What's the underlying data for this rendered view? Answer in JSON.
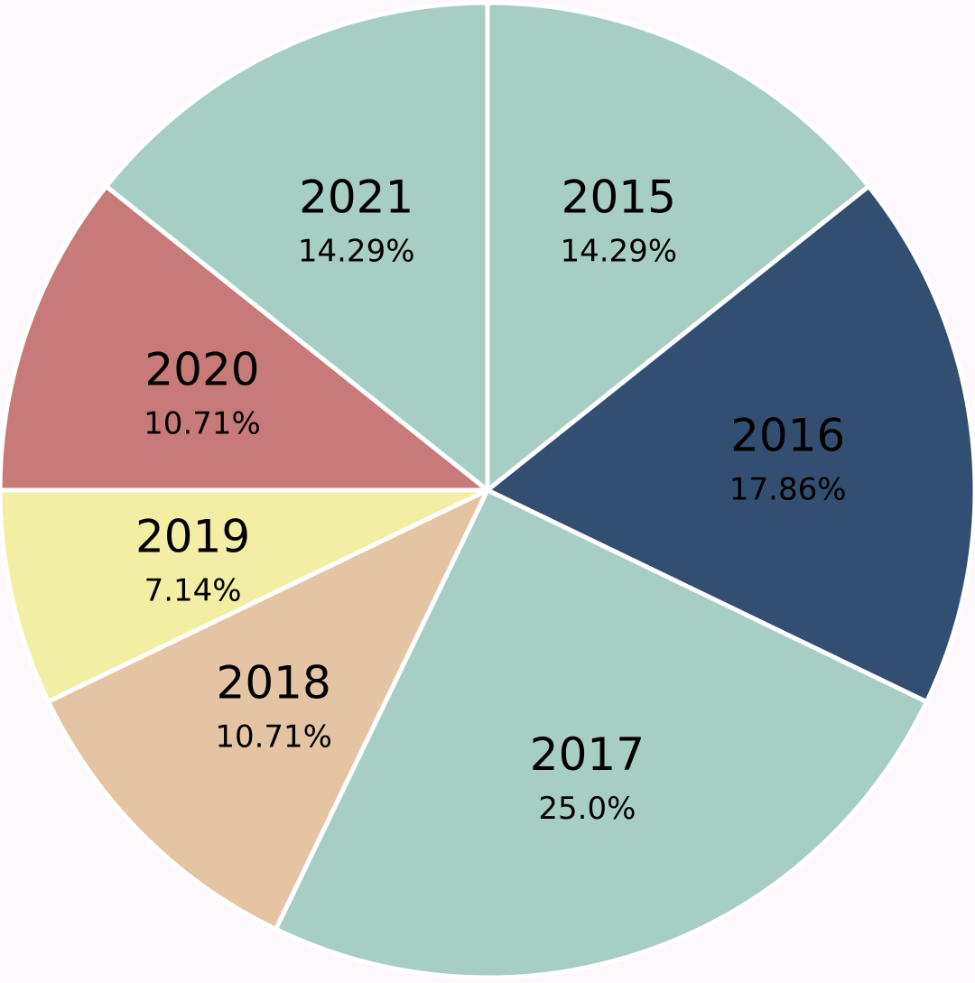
{
  "chart_data": {
    "type": "pie",
    "title": "",
    "start_angle": "top (12 o'clock)",
    "direction": "clockwise",
    "slices": [
      {
        "label": "2015",
        "value": 14.29,
        "percent_label": "14.29%",
        "color": "#a6cec4"
      },
      {
        "label": "2016",
        "value": 17.86,
        "percent_label": "17.86%",
        "color": "#324f72"
      },
      {
        "label": "2017",
        "value": 25.0,
        "percent_label": "25.0%",
        "color": "#a6cec4"
      },
      {
        "label": "2018",
        "value": 10.71,
        "percent_label": "10.71%",
        "color": "#e5c4a4"
      },
      {
        "label": "2019",
        "value": 7.14,
        "percent_label": "7.14%",
        "color": "#f2eea4"
      },
      {
        "label": "2020",
        "value": 10.71,
        "percent_label": "10.71%",
        "color": "#c77a78"
      },
      {
        "label": "2021",
        "value": 14.29,
        "percent_label": "14.29%",
        "color": "#a6cec4"
      }
    ]
  },
  "colors": {
    "background": "#fcf8fc",
    "separator": "#ffffff"
  }
}
